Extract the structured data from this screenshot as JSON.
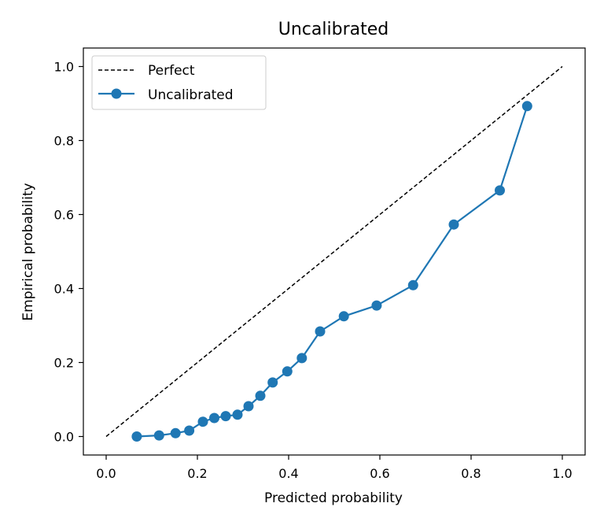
{
  "chart_data": {
    "type": "line",
    "title": "Uncalibrated",
    "xlabel": "Predicted probability",
    "ylabel": "Empirical probability",
    "xlim": [
      -0.05,
      1.05
    ],
    "ylim": [
      -0.05,
      1.05
    ],
    "xticks": [
      "0.0",
      "0.2",
      "0.4",
      "0.6",
      "0.8",
      "1.0"
    ],
    "yticks": [
      "0.0",
      "0.2",
      "0.4",
      "0.6",
      "0.8",
      "1.0"
    ],
    "grid": false,
    "legend_position": "top-left",
    "series": [
      {
        "name": "Perfect",
        "style": "dashed",
        "color": "#000000",
        "x": [
          0.0,
          1.0
        ],
        "y": [
          0.0,
          1.0
        ]
      },
      {
        "name": "Uncalibrated",
        "style": "solid-markers",
        "color": "#1f77b4",
        "x": [
          0.067,
          0.116,
          0.152,
          0.182,
          0.212,
          0.237,
          0.262,
          0.288,
          0.312,
          0.338,
          0.365,
          0.397,
          0.429,
          0.469,
          0.521,
          0.593,
          0.673,
          0.762,
          0.863,
          0.923
        ],
        "y": [
          0.0,
          0.003,
          0.009,
          0.016,
          0.04,
          0.05,
          0.055,
          0.059,
          0.082,
          0.11,
          0.146,
          0.176,
          0.212,
          0.284,
          0.325,
          0.354,
          0.409,
          0.573,
          0.665,
          0.893
        ]
      }
    ]
  }
}
